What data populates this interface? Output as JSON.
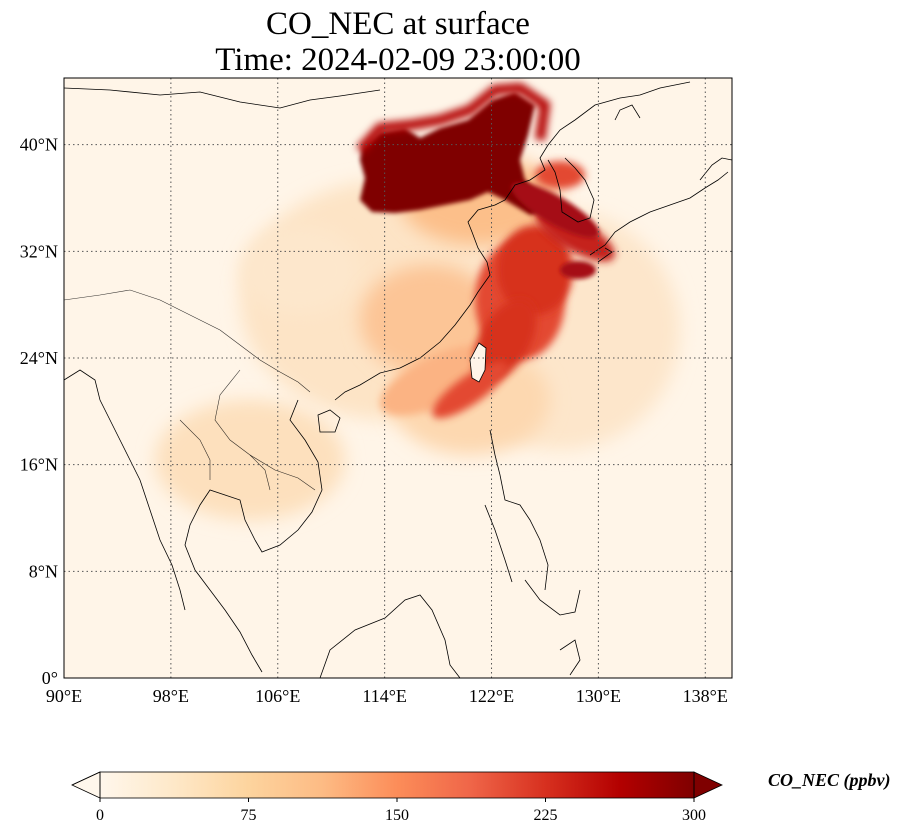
{
  "title": {
    "line1": "CO_NEC at surface",
    "line2": "Time: 2024-02-09 23:00:00"
  },
  "map": {
    "projection": "PlateCarree",
    "lon_range": [
      90,
      140
    ],
    "lat_range": [
      0,
      45
    ],
    "lon_ticks": [
      {
        "value": 90,
        "label": "90°E"
      },
      {
        "value": 98,
        "label": "98°E"
      },
      {
        "value": 106,
        "label": "106°E"
      },
      {
        "value": 114,
        "label": "114°E"
      },
      {
        "value": 122,
        "label": "122°E"
      },
      {
        "value": 130,
        "label": "130°E"
      },
      {
        "value": 138,
        "label": "138°E"
      }
    ],
    "lat_ticks": [
      {
        "value": 0,
        "label": "0°"
      },
      {
        "value": 8,
        "label": "8°N"
      },
      {
        "value": 16,
        "label": "16°N"
      },
      {
        "value": 24,
        "label": "24°N"
      },
      {
        "value": 32,
        "label": "32°N"
      },
      {
        "value": 40,
        "label": "40°N"
      }
    ],
    "gridlines": "dotted",
    "coastlines": true,
    "borders": true
  },
  "colorbar": {
    "cmap": "OrRd",
    "vmin": 0,
    "vmax": 300,
    "extend": "both",
    "ticks": [
      "0",
      "75",
      "150",
      "225",
      "300"
    ],
    "label": "CO_NEC (ppbv)",
    "colors": [
      "#fff7ec",
      "#fee8c8",
      "#fdd49e",
      "#fdbb84",
      "#fc8d59",
      "#ef6548",
      "#d7301f",
      "#b30000",
      "#7f0000"
    ]
  }
}
